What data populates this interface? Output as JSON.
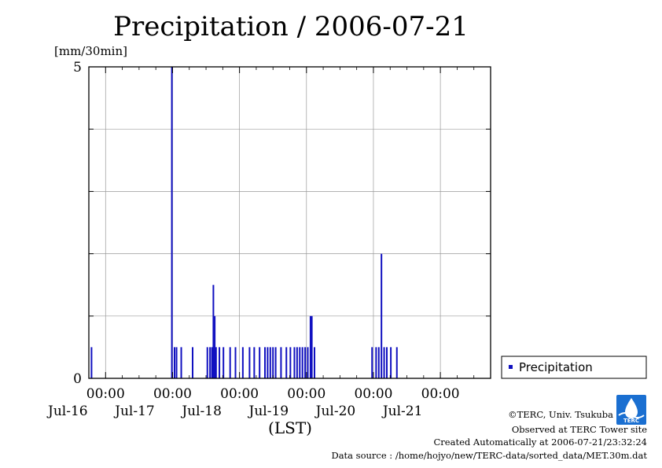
{
  "chart_data": {
    "type": "bar",
    "title": "Precipitation / 2006-07-21",
    "ylabel": "[mm/30min]",
    "xlabel": "(LST)",
    "ylim": [
      0,
      5
    ],
    "yticks": [
      "0",
      "5"
    ],
    "xlim_days": [
      15.75,
      21.75
    ],
    "xticks": [
      {
        "time": "00:00",
        "date": "Jul-16"
      },
      {
        "time": "00:00",
        "date": "Jul-17"
      },
      {
        "time": "00:00",
        "date": "Jul-18"
      },
      {
        "time": "00:00",
        "date": "Jul-19"
      },
      {
        "time": "00:00",
        "date": "Jul-20"
      },
      {
        "time": "00:00",
        "date": "Jul-21"
      }
    ],
    "grid": true,
    "legend_position": "right",
    "series": [
      {
        "name": "Precipitation",
        "color": "#1010c0",
        "points": [
          {
            "x": 15.79,
            "y": 0.5
          },
          {
            "x": 16.99,
            "y": 5.0
          },
          {
            "x": 17.03,
            "y": 0.5
          },
          {
            "x": 17.06,
            "y": 0.5
          },
          {
            "x": 17.13,
            "y": 0.5
          },
          {
            "x": 17.3,
            "y": 0.5
          },
          {
            "x": 17.52,
            "y": 0.5
          },
          {
            "x": 17.56,
            "y": 0.5
          },
          {
            "x": 17.59,
            "y": 0.5
          },
          {
            "x": 17.61,
            "y": 1.5
          },
          {
            "x": 17.63,
            "y": 1.0
          },
          {
            "x": 17.65,
            "y": 0.5
          },
          {
            "x": 17.7,
            "y": 0.5
          },
          {
            "x": 17.76,
            "y": 0.5
          },
          {
            "x": 17.86,
            "y": 0.5
          },
          {
            "x": 17.94,
            "y": 0.5
          },
          {
            "x": 18.05,
            "y": 0.5
          },
          {
            "x": 18.15,
            "y": 0.5
          },
          {
            "x": 18.22,
            "y": 0.5
          },
          {
            "x": 18.3,
            "y": 0.5
          },
          {
            "x": 18.38,
            "y": 0.5
          },
          {
            "x": 18.42,
            "y": 0.5
          },
          {
            "x": 18.46,
            "y": 0.5
          },
          {
            "x": 18.5,
            "y": 0.5
          },
          {
            "x": 18.54,
            "y": 0.5
          },
          {
            "x": 18.62,
            "y": 0.5
          },
          {
            "x": 18.7,
            "y": 0.5
          },
          {
            "x": 18.76,
            "y": 0.5
          },
          {
            "x": 18.82,
            "y": 0.5
          },
          {
            "x": 18.86,
            "y": 0.5
          },
          {
            "x": 18.9,
            "y": 0.5
          },
          {
            "x": 18.94,
            "y": 0.5
          },
          {
            "x": 18.98,
            "y": 0.5
          },
          {
            "x": 19.02,
            "y": 0.5
          },
          {
            "x": 19.06,
            "y": 1.0
          },
          {
            "x": 19.08,
            "y": 1.0
          },
          {
            "x": 19.12,
            "y": 0.5
          },
          {
            "x": 19.98,
            "y": 0.5
          },
          {
            "x": 20.04,
            "y": 0.5
          },
          {
            "x": 20.08,
            "y": 0.5
          },
          {
            "x": 20.12,
            "y": 2.0
          },
          {
            "x": 20.16,
            "y": 0.5
          },
          {
            "x": 20.2,
            "y": 0.5
          },
          {
            "x": 20.26,
            "y": 0.5
          },
          {
            "x": 20.35,
            "y": 0.5
          }
        ]
      }
    ]
  },
  "legend": {
    "label": "Precipitation"
  },
  "footer": {
    "credit": "©TERC, Univ. Tsukuba",
    "site": "Observed at TERC Tower site",
    "created": "Created Automatically at 2006-07-21/23:32:24",
    "source": "Data source : /home/hojyo/new/TERC-data/sorted_data/MET.30m.dat",
    "logo_text": "TERC"
  }
}
